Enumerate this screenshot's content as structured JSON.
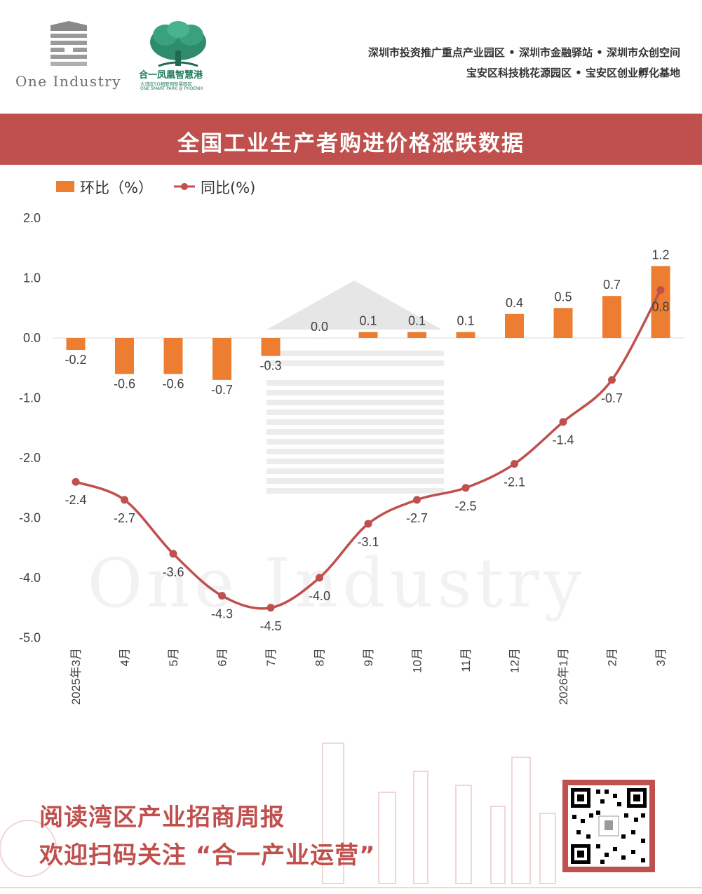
{
  "header": {
    "logo_one_industry_text": "One Industry",
    "logo_phoenix_name": "合一凤凰智慧港",
    "logo_phoenix_sub1": "大湾区5G物联网智慧园区",
    "logo_phoenix_sub2": "ONE SMART PARK @ PHOENIX",
    "line1": "深圳市投资推广重点产业园区 • 深圳市金融驿站 • 深圳市众创空间",
    "line2": "宝安区科技桃花源园区 • 宝安区创业孵化基地"
  },
  "banner": {
    "title": "全国工业生产者购进价格涨跌数据"
  },
  "colors": {
    "bar": "#ed7d31",
    "line": "#c0504d",
    "banner": "#c0504d"
  },
  "chart_data": {
    "type": "bar",
    "categories": [
      "2025年3月",
      "4月",
      "5月",
      "6月",
      "7月",
      "8月",
      "9月",
      "10月",
      "11月",
      "12月",
      "2026年1月",
      "2月",
      "3月"
    ],
    "series": [
      {
        "name": "环比（%）",
        "type": "bar",
        "values": [
          -0.2,
          -0.6,
          -0.6,
          -0.7,
          -0.3,
          0.0,
          0.1,
          0.1,
          0.1,
          0.4,
          0.5,
          0.7,
          1.2
        ]
      },
      {
        "name": "同比(%)",
        "type": "line",
        "values": [
          -2.4,
          -2.7,
          -3.6,
          -4.3,
          -4.5,
          -4.0,
          -3.1,
          -2.7,
          -2.5,
          -2.1,
          -1.4,
          -0.7,
          0.8
        ]
      }
    ],
    "ylim": [
      -5.0,
      2.0
    ],
    "yticks": [
      "2.0",
      "1.0",
      "0.0",
      "-1.0",
      "-2.0",
      "-3.0",
      "-4.0",
      "-5.0"
    ],
    "grid": false,
    "legend_position": "top-left",
    "watermark": "One Industry"
  },
  "footer": {
    "line1": "阅读湾区产业招商周报",
    "line2": "欢迎扫码关注 “合一产业运营”"
  }
}
